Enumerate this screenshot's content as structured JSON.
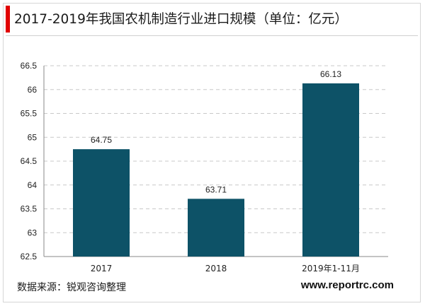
{
  "title": "2017-2019年我国农机制造行业进口规模（单位：亿元）",
  "source": "数据来源：锐观咨询整理",
  "website": "www.reportrc.com",
  "colors": {
    "bar": "#0d5267",
    "accent": "#e10000",
    "grid": "#c8c8c8"
  },
  "chart_data": {
    "type": "bar",
    "title": "2017-2019年我国农机制造行业进口规模（单位：亿元）",
    "xlabel": "",
    "ylabel": "",
    "categories": [
      "2017",
      "2018",
      "2019年1-11月"
    ],
    "values": [
      64.75,
      63.71,
      66.13
    ],
    "value_labels": [
      "64.75",
      "63.71",
      "66.13"
    ],
    "ylim": [
      62.5,
      66.5
    ],
    "yticks": [
      "62.5",
      "63",
      "63.5",
      "64",
      "64.5",
      "65",
      "65.5",
      "66",
      "66.5"
    ],
    "grid": true,
    "legend": "none"
  }
}
